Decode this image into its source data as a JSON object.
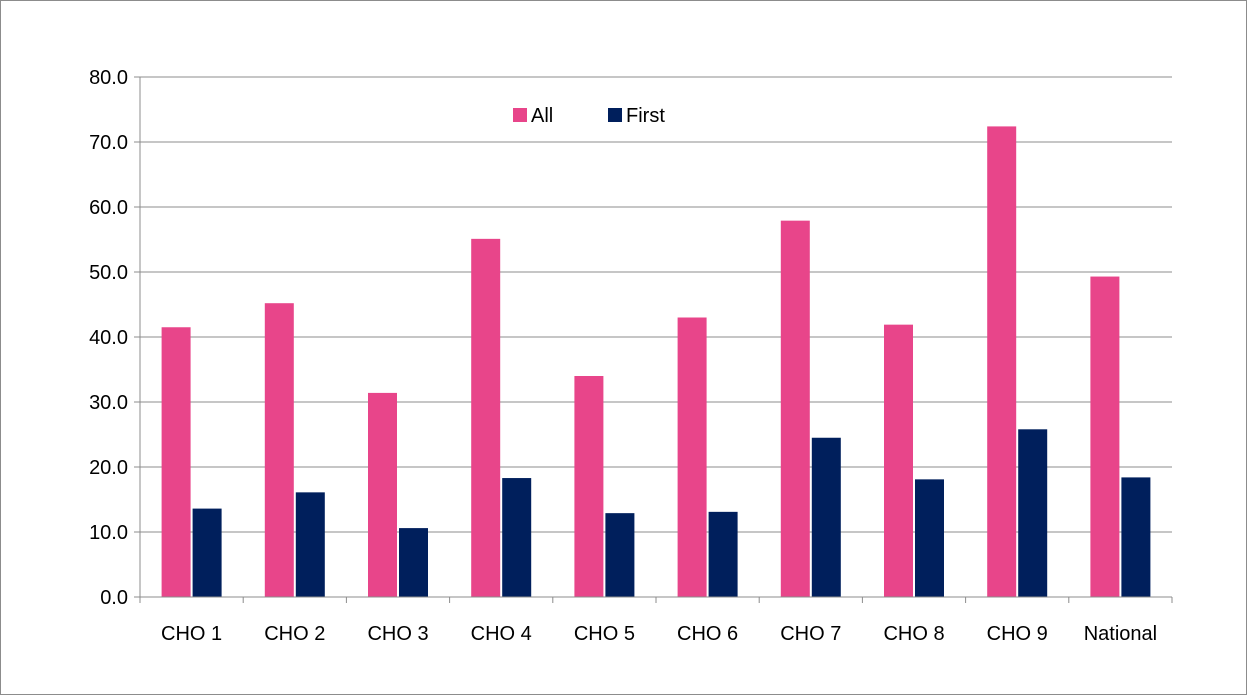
{
  "chart_data": {
    "type": "bar",
    "categories": [
      "CHO 1",
      "CHO 2",
      "CHO 3",
      "CHO 4",
      "CHO 5",
      "CHO 6",
      "CHO 7",
      "CHO 8",
      "CHO 9",
      "National"
    ],
    "series": [
      {
        "name": "All",
        "color": "#e8458a",
        "values": [
          41.5,
          45.2,
          31.4,
          55.1,
          34.0,
          43.0,
          57.9,
          41.9,
          72.4,
          49.3
        ]
      },
      {
        "name": "First",
        "color": "#001f5c",
        "values": [
          13.6,
          16.1,
          10.6,
          18.3,
          12.9,
          13.1,
          24.5,
          18.1,
          25.8,
          18.4
        ]
      }
    ],
    "ylim": [
      0,
      80
    ],
    "yticks": [
      "0.0",
      "10.0",
      "20.0",
      "30.0",
      "40.0",
      "50.0",
      "60.0",
      "70.0",
      "80.0"
    ],
    "grid": true,
    "legend": "top-center"
  }
}
